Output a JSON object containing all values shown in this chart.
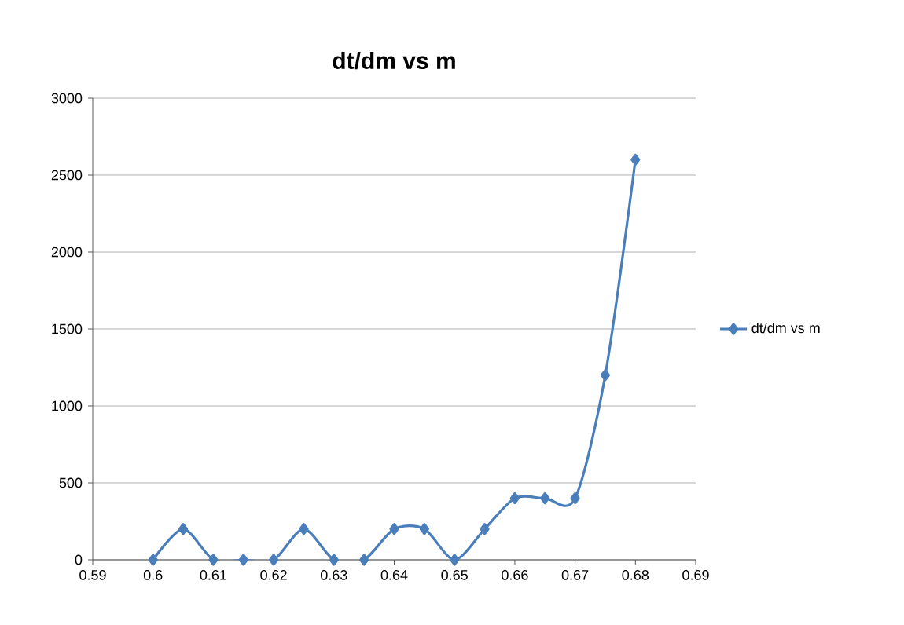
{
  "chart_data": {
    "type": "line",
    "title": "dt/dm vs m",
    "x": [
      0.6,
      0.605,
      0.61,
      0.615,
      0.62,
      0.625,
      0.63,
      0.635,
      0.64,
      0.645,
      0.65,
      0.655,
      0.66,
      0.665,
      0.67,
      0.675,
      0.68
    ],
    "series": [
      {
        "name": "dt/dm vs m",
        "color": "#4a7ebb",
        "values": [
          0,
          200,
          0,
          0,
          0,
          200,
          0,
          0,
          200,
          200,
          0,
          200,
          400,
          400,
          400,
          1200,
          2600
        ]
      }
    ],
    "xlim": [
      0.59,
      0.69
    ],
    "xticks": [
      0.59,
      0.6,
      0.61,
      0.62,
      0.63,
      0.64,
      0.65,
      0.66,
      0.67,
      0.68,
      0.69
    ],
    "ylim": [
      0,
      3000
    ],
    "yticks": [
      0,
      500,
      1000,
      1500,
      2000,
      2500,
      3000
    ],
    "grid": "y",
    "legend": "right",
    "marker": "diamond",
    "line_style": "solid"
  }
}
